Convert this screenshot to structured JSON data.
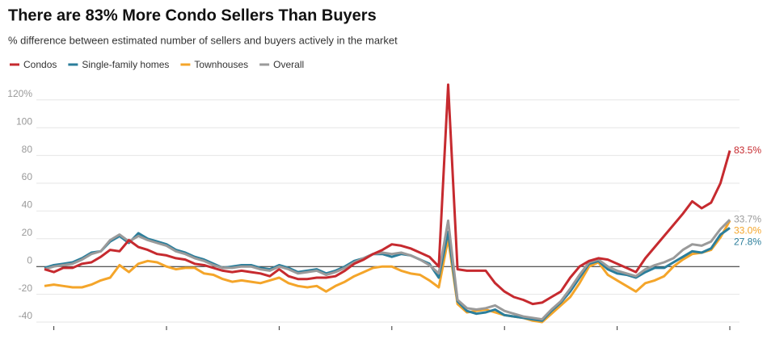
{
  "chart_data": {
    "type": "line",
    "title": "There are 83% More Condo Sellers Than Buyers",
    "subtitle": "% difference between estimated number of sellers and buyers actively in the market",
    "categories": [
      null,
      null,
      null,
      null,
      null,
      null,
      null,
      null,
      null,
      null,
      null,
      null,
      null,
      null,
      null,
      null,
      null,
      null,
      null,
      null,
      null,
      null,
      null,
      null,
      null,
      null,
      null,
      null,
      null,
      null,
      null,
      null,
      null,
      null,
      null,
      null,
      null,
      null,
      null,
      null,
      null,
      null,
      null,
      null,
      null,
      null,
      null,
      null,
      null,
      null,
      null,
      null,
      null,
      null,
      null,
      null,
      null,
      null,
      null,
      null,
      null,
      null,
      null,
      null,
      null,
      null,
      null,
      null,
      null,
      null,
      null,
      null,
      null,
      null
    ],
    "series": [
      {
        "name": "Condos",
        "color": "#c62a2f",
        "end_label": "83.5%",
        "values": [
          -2,
          -4,
          -1,
          -1,
          2,
          3,
          7,
          12,
          11,
          19,
          14,
          12,
          9,
          8,
          6,
          5,
          2,
          1,
          -1,
          -3,
          -4,
          -3,
          -4,
          -5,
          -7,
          -2,
          -7,
          -9,
          -9,
          -8,
          -8,
          -7,
          -3,
          2,
          5,
          9,
          12,
          16,
          15,
          13,
          10,
          7,
          0,
          131,
          -2,
          -3,
          -3,
          -3,
          -12,
          -18,
          -22,
          -24,
          -27,
          -26,
          -22,
          -18,
          -8,
          0,
          4,
          6,
          5,
          2,
          -1,
          -4,
          6,
          14,
          22,
          30,
          38,
          47,
          42,
          46,
          60,
          83.5
        ]
      },
      {
        "name": "Single-family homes",
        "color": "#2b7e9b",
        "end_label": "27.8%",
        "values": [
          -1,
          1,
          2,
          3,
          6,
          10,
          11,
          18,
          22,
          17,
          24,
          20,
          18,
          16,
          12,
          10,
          7,
          5,
          2,
          -1,
          0,
          1,
          1,
          -1,
          -2,
          1,
          -1,
          -4,
          -3,
          -2,
          -5,
          -3,
          0,
          4,
          6,
          9,
          9,
          7,
          9,
          8,
          5,
          2,
          -8,
          25,
          -25,
          -32,
          -34,
          -33,
          -31,
          -35,
          -36,
          -37,
          -38,
          -39,
          -32,
          -26,
          -18,
          -8,
          2,
          4,
          -2,
          -5,
          -6,
          -8,
          -4,
          -1,
          -1,
          3,
          7,
          11,
          10,
          13,
          23,
          27.8
        ]
      },
      {
        "name": "Townhouses",
        "color": "#f4a52a",
        "end_label": "33.0%",
        "values": [
          -14,
          -13,
          -14,
          -15,
          -15,
          -13,
          -10,
          -8,
          1,
          -4,
          2,
          4,
          3,
          0,
          -2,
          -1,
          -1,
          -5,
          -6,
          -9,
          -11,
          -10,
          -11,
          -12,
          -10,
          -8,
          -12,
          -14,
          -15,
          -14,
          -18,
          -14,
          -11,
          -7,
          -4,
          -1,
          0,
          0,
          -3,
          -5,
          -6,
          -10,
          -15,
          20,
          -27,
          -33,
          -32,
          -31,
          -33,
          -35,
          -36,
          -37,
          -39,
          -40,
          -34,
          -28,
          -22,
          -12,
          0,
          3,
          -6,
          -10,
          -14,
          -18,
          -12,
          -10,
          -7,
          0,
          5,
          9,
          10,
          12,
          21,
          33.0
        ]
      },
      {
        "name": "Overall",
        "color": "#9a9a9a",
        "end_label": "33.7%",
        "values": [
          -2,
          0,
          1,
          2,
          5,
          9,
          11,
          19,
          23,
          18,
          22,
          19,
          17,
          15,
          11,
          9,
          6,
          4,
          1,
          -1,
          -1,
          0,
          0,
          -2,
          -3,
          0,
          -2,
          -5,
          -4,
          -3,
          -6,
          -4,
          -1,
          3,
          6,
          9,
          10,
          9,
          10,
          8,
          5,
          1,
          -5,
          33,
          -24,
          -30,
          -31,
          -30,
          -28,
          -32,
          -34,
          -36,
          -37,
          -38,
          -31,
          -25,
          -16,
          -6,
          3,
          5,
          0,
          -3,
          -5,
          -7,
          -2,
          1,
          3,
          6,
          12,
          16,
          15,
          18,
          27,
          33.7
        ]
      }
    ],
    "ylim": [
      -40,
      133
    ],
    "yticks": [
      -40,
      -20,
      0,
      20,
      40,
      60,
      80,
      100,
      {
        "value": 120,
        "label": "120%"
      }
    ],
    "grid": true
  }
}
